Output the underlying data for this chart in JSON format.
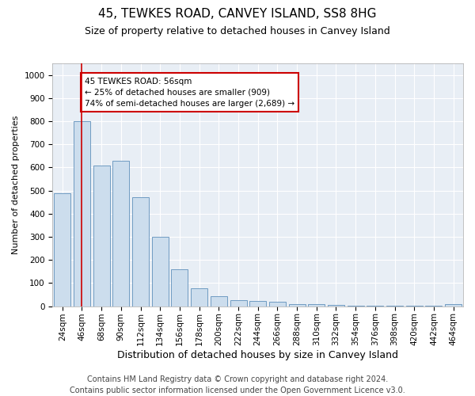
{
  "title": "45, TEWKES ROAD, CANVEY ISLAND, SS8 8HG",
  "subtitle": "Size of property relative to detached houses in Canvey Island",
  "xlabel": "Distribution of detached houses by size in Canvey Island",
  "ylabel": "Number of detached properties",
  "footer_line1": "Contains HM Land Registry data © Crown copyright and database right 2024.",
  "footer_line2": "Contains public sector information licensed under the Open Government Licence v3.0.",
  "categories": [
    "24sqm",
    "46sqm",
    "68sqm",
    "90sqm",
    "112sqm",
    "134sqm",
    "156sqm",
    "178sqm",
    "200sqm",
    "222sqm",
    "244sqm",
    "266sqm",
    "288sqm",
    "310sqm",
    "332sqm",
    "354sqm",
    "376sqm",
    "398sqm",
    "420sqm",
    "442sqm",
    "464sqm"
  ],
  "values": [
    490,
    800,
    610,
    630,
    470,
    300,
    160,
    78,
    45,
    25,
    22,
    18,
    10,
    8,
    5,
    4,
    3,
    2,
    2,
    1,
    8
  ],
  "bar_color": "#ccdded",
  "bar_edge_color": "#5f8fbb",
  "ylim": [
    0,
    1050
  ],
  "yticks": [
    0,
    100,
    200,
    300,
    400,
    500,
    600,
    700,
    800,
    900,
    1000
  ],
  "vline_x": 1.0,
  "vline_color": "#cc0000",
  "annotation_line1": "45 TEWKES ROAD: 56sqm",
  "annotation_line2": "← 25% of detached houses are smaller (909)",
  "annotation_line3": "74% of semi-detached houses are larger (2,689) →",
  "annotation_box_color": "#ffffff",
  "annotation_box_edge": "#cc0000",
  "background_color": "#e8eef5",
  "grid_color": "#ffffff",
  "title_fontsize": 11,
  "subtitle_fontsize": 9,
  "xlabel_fontsize": 9,
  "ylabel_fontsize": 8,
  "tick_fontsize": 7.5,
  "annotation_fontsize": 7.5,
  "footer_fontsize": 7
}
